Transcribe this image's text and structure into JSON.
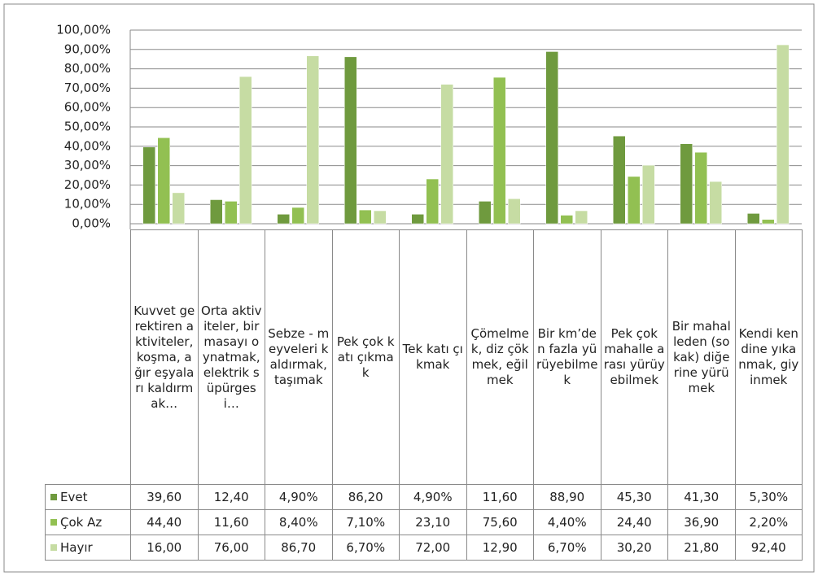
{
  "chart_data": {
    "type": "bar",
    "categories": [
      "Kuvvet gerektiren aktiviteler, koşma, ağır eşyaları kaldırmak…",
      "Orta aktiviteler, bir masayı oynatmak, elektrik süpürgesi…",
      "Sebze - meyveleri kaldırmak, taşımak",
      "Pek çok katı çıkmak",
      "Tek katı çıkmak",
      "Çömelmek, diz çökmek, eğilmek",
      "Bir km’den fazla yürüyebilmek",
      "Pek çok mahalle arası yürüyebilmek",
      "Bir mahalleden (sokak) diğerine yürümek",
      "Kendi kendine yıkanmak, giyinmek"
    ],
    "series": [
      {
        "name": "Evet",
        "color": "#6f9a3e",
        "values": [
          39.6,
          12.4,
          4.9,
          86.2,
          4.9,
          11.6,
          88.9,
          45.3,
          41.3,
          5.3
        ],
        "value_labels": [
          "39,60",
          "12,40",
          "4,90%",
          "86,20",
          "4,90%",
          "11,60",
          "88,90",
          "45,30",
          "41,30",
          "5,30%"
        ]
      },
      {
        "name": "Çok Az",
        "color": "#92c052",
        "values": [
          44.4,
          11.6,
          8.4,
          7.1,
          23.1,
          75.6,
          4.4,
          24.4,
          36.9,
          2.2
        ],
        "value_labels": [
          "44,40",
          "11,60",
          "8,40%",
          "7,10%",
          "23,10",
          "75,60",
          "4,40%",
          "24,40",
          "36,90",
          "2,20%"
        ]
      },
      {
        "name": "Hayır",
        "color": "#c6dca3",
        "values": [
          16.0,
          76.0,
          86.7,
          6.7,
          72.0,
          12.9,
          6.7,
          30.2,
          21.8,
          92.4
        ],
        "value_labels": [
          "16,00",
          "76,00",
          "86,70",
          "6,70%",
          "72,00",
          "12,90",
          "6,70%",
          "30,20",
          "21,80",
          "92,40"
        ]
      }
    ],
    "ylim": [
      0,
      100
    ],
    "yticks": [
      {
        "value": 0,
        "label": "0,00%"
      },
      {
        "value": 10,
        "label": "10,00%"
      },
      {
        "value": 20,
        "label": "20,00%"
      },
      {
        "value": 30,
        "label": "30,00%"
      },
      {
        "value": 40,
        "label": "40,00%"
      },
      {
        "value": 50,
        "label": "50,00%"
      },
      {
        "value": 60,
        "label": "60,00%"
      },
      {
        "value": 70,
        "label": "70,00%"
      },
      {
        "value": 80,
        "label": "80,00%"
      },
      {
        "value": 90,
        "label": "90,00%"
      },
      {
        "value": 100,
        "label": "100,00%"
      }
    ],
    "grid": true
  }
}
